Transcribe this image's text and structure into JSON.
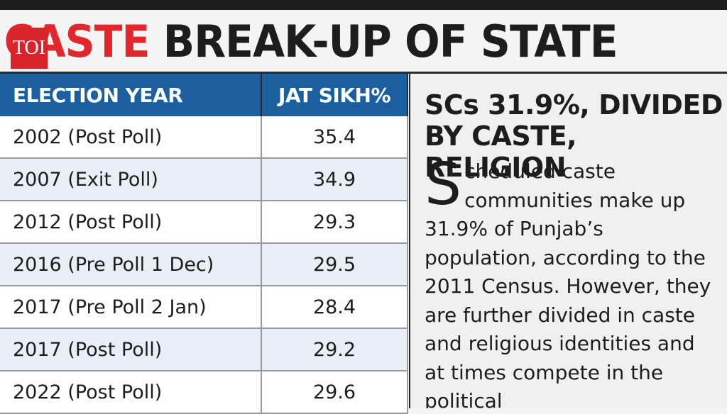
{
  "headline": {
    "caption_red": "CASTE",
    "caption_black": " BREAK-UP OF STATE",
    "logo": "TOI"
  },
  "table": {
    "headers": [
      "ELECTION YEAR",
      "JAT SIKH%"
    ],
    "rows": [
      {
        "election": "2002 (Post Poll)",
        "value": "35.4"
      },
      {
        "election": "2007 (Exit Poll)",
        "value": "34.9"
      },
      {
        "election": "2012 (Post Poll)",
        "value": "29.3"
      },
      {
        "election": "2016 (Pre Poll 1 Dec)",
        "value": "29.5"
      },
      {
        "election": "2017 (Pre Poll 2 Jan)",
        "value": "28.4"
      },
      {
        "election": "2017 (Post Poll)",
        "value": "29.2"
      },
      {
        "election": "2022 (Post Poll)",
        "value": "29.6"
      }
    ]
  },
  "sidebar": {
    "title": "SCs 31.9%, DIVIDED BY CASTE, RELIGION",
    "dropcap": "S",
    "body": "cheduled caste communities make up 31.9% of Punjab’s population, according to the 2011 Census. However, they are further divided in caste and religious identities and at times compete in the political"
  },
  "colors": {
    "header_blue": "#1b5f9e",
    "accent_red": "#e3262c",
    "row_tint": "#e9eff6"
  }
}
